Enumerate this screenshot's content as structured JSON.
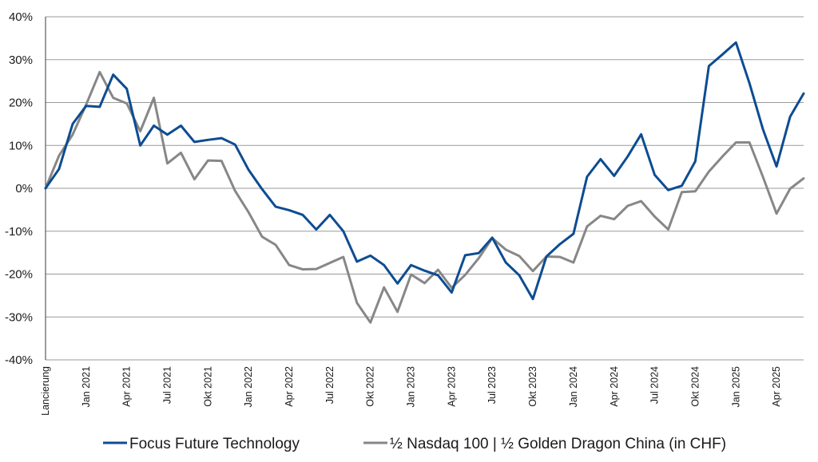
{
  "chart_data": {
    "type": "line",
    "title": "",
    "xlabel": "",
    "ylabel": "",
    "ylim": [
      -40,
      40
    ],
    "y_ticks": [
      -40,
      -30,
      -20,
      -10,
      0,
      10,
      20,
      30,
      40
    ],
    "y_tick_labels": [
      "-40%",
      "-30%",
      "-20%",
      "-10%",
      "0%",
      "10%",
      "20%",
      "30%",
      "40%"
    ],
    "x_tick_labels": [
      "Lancierung",
      "Jan 2021",
      "Apr 2021",
      "Jul 2021",
      "Okt 2021",
      "Jan 2022",
      "Apr 2022",
      "Jul 2022",
      "Okt 2022",
      "Jan 2023",
      "Apr 2023",
      "Jul 2023",
      "Okt 2023",
      "Jan 2024",
      "Apr 2024",
      "Jul 2024",
      "Okt 2024",
      "Jan 2025",
      "Apr 2025"
    ],
    "x_tick_index": [
      0,
      3,
      6,
      9,
      12,
      15,
      18,
      21,
      24,
      27,
      30,
      33,
      36,
      39,
      42,
      45,
      48,
      51,
      54
    ],
    "grid": "horizontal",
    "legend_position": "bottom",
    "series": [
      {
        "name": "Focus Future Technology",
        "color": "#0d4c92",
        "values": [
          0,
          4.5,
          15,
          19.2,
          19,
          26.5,
          23.2,
          10,
          14.6,
          12.5,
          14.6,
          10.8,
          11.3,
          11.7,
          10.2,
          4.3,
          -0.2,
          -4.3,
          -5.1,
          -6.2,
          -9.6,
          -6.2,
          -10,
          -17.1,
          -15.7,
          -17.9,
          -22.2,
          -17.9,
          -19.2,
          -20.3,
          -24.3,
          -15.6,
          -15.1,
          -11.5,
          -17.3,
          -20.3,
          -25.8,
          -15.9,
          -13,
          -10.6,
          2.7,
          6.8,
          2.9,
          7.4,
          12.6,
          3.1,
          -0.4,
          0.6,
          6.3,
          28.5,
          31.2,
          34,
          24.5,
          13.7,
          5.1,
          16.7,
          22.1
        ]
      },
      {
        "name": "½ Nasdaq 100 | ½ Golden Dragon China (in CHF)",
        "color": "#878787",
        "values": [
          0,
          7.6,
          12.5,
          19.5,
          27.1,
          21.1,
          19.8,
          13.3,
          21.1,
          5.8,
          8.3,
          2.1,
          6.5,
          6.4,
          -0.6,
          -5.6,
          -11.3,
          -13.2,
          -17.9,
          -18.9,
          -18.8,
          -17.4,
          -16,
          -26.7,
          -31.3,
          -23.1,
          -28.8,
          -20.1,
          -22.1,
          -19,
          -23.2,
          -20.2,
          -16.3,
          -11.6,
          -14.3,
          -15.8,
          -19.3,
          -15.9,
          -16,
          -17.3,
          -8.9,
          -6.4,
          -7.2,
          -4.1,
          -3,
          -6.6,
          -9.6,
          -0.9,
          -0.7,
          3.9,
          7.4,
          10.7,
          10.7,
          2.6,
          -5.9,
          -0.1,
          2.3
        ]
      }
    ]
  }
}
